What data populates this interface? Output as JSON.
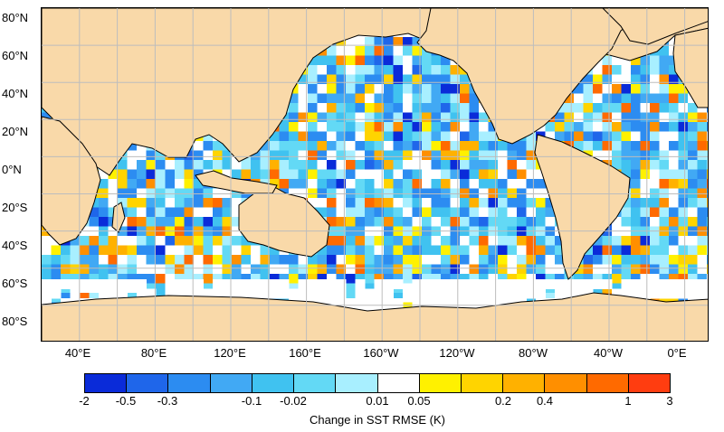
{
  "map": {
    "lat_labels": [
      "80°N",
      "60°N",
      "40°N",
      "20°N",
      "0°N",
      "20°S",
      "40°S",
      "60°S",
      "80°S"
    ],
    "lon_labels": [
      "40°E",
      "80°E",
      "120°E",
      "160°E",
      "160°W",
      "120°W",
      "80°W",
      "40°W",
      "0°E"
    ],
    "land_color": "#f9d9a9",
    "ocean_color": "#ffffff",
    "grid_color": "#bdbdbd",
    "coast_color": "#000000"
  },
  "colorbar": {
    "title": "Change in SST RMSE (K)",
    "tick_labels": [
      "-2",
      "-0.5",
      "-0.3",
      "-0.1",
      "-0.02",
      "0.01",
      "0.05",
      "0.2",
      "0.4",
      "1",
      "3"
    ],
    "colors": [
      "#0a2bd9",
      "#1f66ea",
      "#2c8cf1",
      "#41a9f4",
      "#40c2f0",
      "#63d9f5",
      "#a8efff",
      "#ffffff",
      "#fff100",
      "#ffd400",
      "#ffb100",
      "#ff8f00",
      "#ff6a00",
      "#ff3d10"
    ]
  }
}
